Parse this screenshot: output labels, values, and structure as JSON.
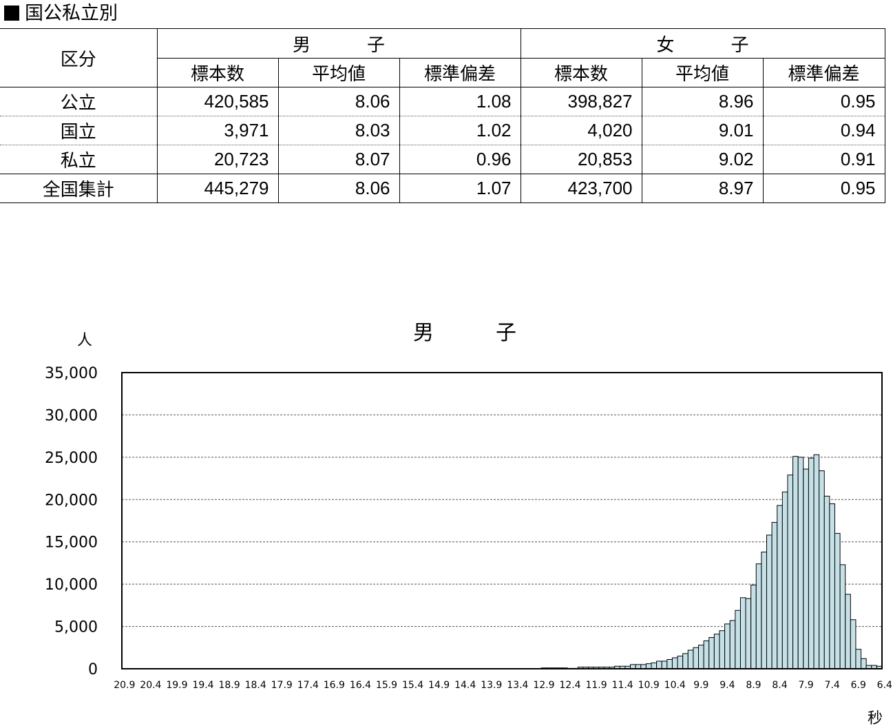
{
  "section_title": "国公私立別",
  "table": {
    "kubun_header": "区分",
    "groups": [
      "男　子",
      "女　子"
    ],
    "sub_headers": [
      "標本数",
      "平均値",
      "標準偏差",
      "標本数",
      "平均値",
      "標準偏差"
    ],
    "rows": [
      {
        "label": "公立",
        "values": [
          "420,585",
          "8.06",
          "1.08",
          "398,827",
          "8.96",
          "0.95"
        ]
      },
      {
        "label": "国立",
        "values": [
          "3,971",
          "8.03",
          "1.02",
          "4,020",
          "9.01",
          "0.94"
        ]
      },
      {
        "label": "私立",
        "values": [
          "20,723",
          "8.07",
          "0.96",
          "20,853",
          "9.02",
          "0.91"
        ]
      },
      {
        "label": "全国集計",
        "values": [
          "445,279",
          "8.06",
          "1.07",
          "423,700",
          "8.97",
          "0.95"
        ]
      }
    ]
  },
  "chart_title": "男　子",
  "y_unit": "人",
  "x_unit": "秒",
  "colors": {
    "bar_fill": "#c5e0e6",
    "bar_stroke": "#000000",
    "grid": "#555555"
  },
  "chart_data": {
    "type": "bar",
    "title": "男　子",
    "ylim": [
      0,
      35000
    ],
    "y_ticks": [
      "0",
      "5,000",
      "10,000",
      "15,000",
      "20,000",
      "25,000",
      "30,000",
      "35,000"
    ],
    "y_tick_values": [
      0,
      5000,
      10000,
      15000,
      20000,
      25000,
      30000,
      35000
    ],
    "x_tick_labels": [
      "20.9",
      "20.4",
      "19.9",
      "19.4",
      "18.9",
      "18.4",
      "17.9",
      "17.4",
      "16.9",
      "16.4",
      "15.9",
      "15.4",
      "14.9",
      "14.4",
      "13.9",
      "13.4",
      "12.9",
      "12.4",
      "11.9",
      "11.4",
      "10.9",
      "10.4",
      "9.9",
      "9.4",
      "8.9",
      "8.4",
      "7.9",
      "7.4",
      "6.9",
      "6.4"
    ],
    "x_start": 20.9,
    "x_step": -0.1,
    "values": [
      10,
      10,
      10,
      10,
      10,
      10,
      10,
      10,
      10,
      10,
      10,
      10,
      10,
      10,
      10,
      10,
      10,
      10,
      10,
      10,
      10,
      10,
      10,
      10,
      10,
      10,
      10,
      10,
      10,
      10,
      10,
      10,
      10,
      10,
      10,
      10,
      10,
      10,
      10,
      10,
      10,
      10,
      10,
      10,
      10,
      10,
      10,
      10,
      10,
      10,
      10,
      10,
      10,
      10,
      10,
      10,
      10,
      10,
      10,
      10,
      10,
      10,
      10,
      10,
      10,
      10,
      10,
      10,
      10,
      10,
      10,
      10,
      10,
      10,
      10,
      10,
      10,
      10,
      10,
      10,
      100,
      100,
      100,
      100,
      100,
      50,
      50,
      200,
      200,
      200,
      200,
      200,
      200,
      200,
      300,
      300,
      300,
      500,
      500,
      500,
      600,
      700,
      900,
      900,
      1100,
      1300,
      1500,
      1800,
      2200,
      2500,
      2800,
      3300,
      3700,
      4100,
      4500,
      5300,
      5700,
      6900,
      8400,
      8300,
      9900,
      12400,
      13800,
      15800,
      17300,
      19300,
      20900,
      22900,
      25100,
      25000,
      23600,
      24900,
      25300,
      23400,
      20400,
      19500,
      16000,
      12300,
      8800,
      5800,
      2300,
      1200,
      400,
      400,
      300
    ]
  }
}
